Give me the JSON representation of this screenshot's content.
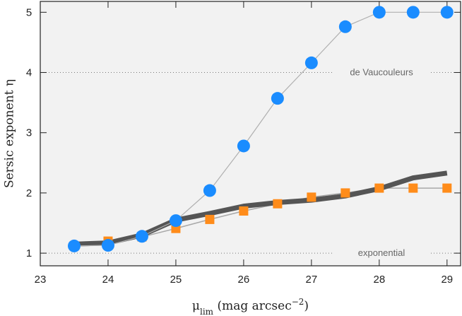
{
  "chart_data": {
    "type": "line",
    "ylabel": "Sersic exponent η",
    "xlabel": [
      "μ",
      "lim",
      " (mag arcsec",
      "−2",
      ")"
    ],
    "x": [
      23.5,
      24,
      24.5,
      25,
      25.5,
      26,
      26.5,
      27,
      27.5,
      28,
      28.5,
      29
    ],
    "series": [
      {
        "color": "#ff8c1a",
        "line_color": "#a8a8a8",
        "marker": "square",
        "line_width": 1.5,
        "values": [
          1.12,
          1.2,
          1.27,
          1.41,
          1.56,
          1.7,
          1.82,
          1.93,
          2.0,
          2.08,
          2.08,
          2.08
        ]
      },
      {
        "color": "#555555",
        "line_color": "#555555",
        "marker": "none",
        "line_width": 7,
        "values": [
          1.15,
          1.17,
          1.3,
          1.55,
          1.66,
          1.78,
          1.84,
          1.88,
          1.95,
          2.07,
          2.25,
          2.33
        ]
      },
      {
        "color": "#1a8cff",
        "line_color": "#b0b0b0",
        "marker": "circle",
        "line_width": 1.2,
        "values": [
          1.12,
          1.13,
          1.28,
          1.54,
          2.04,
          2.78,
          3.57,
          4.16,
          4.76,
          5.0,
          5.0,
          5.0
        ]
      }
    ],
    "reference_lines": [
      {
        "y": 4,
        "label": "de Vaucouleurs"
      },
      {
        "y": 1,
        "label": "exponential"
      }
    ],
    "xlim": [
      23,
      29.2
    ],
    "ylim": [
      0.79,
      5.18
    ],
    "xticks": [
      23,
      24,
      25,
      26,
      27,
      28,
      29
    ],
    "yticks": [
      1,
      2,
      3,
      4,
      5
    ],
    "background": "#f2f2f2"
  }
}
